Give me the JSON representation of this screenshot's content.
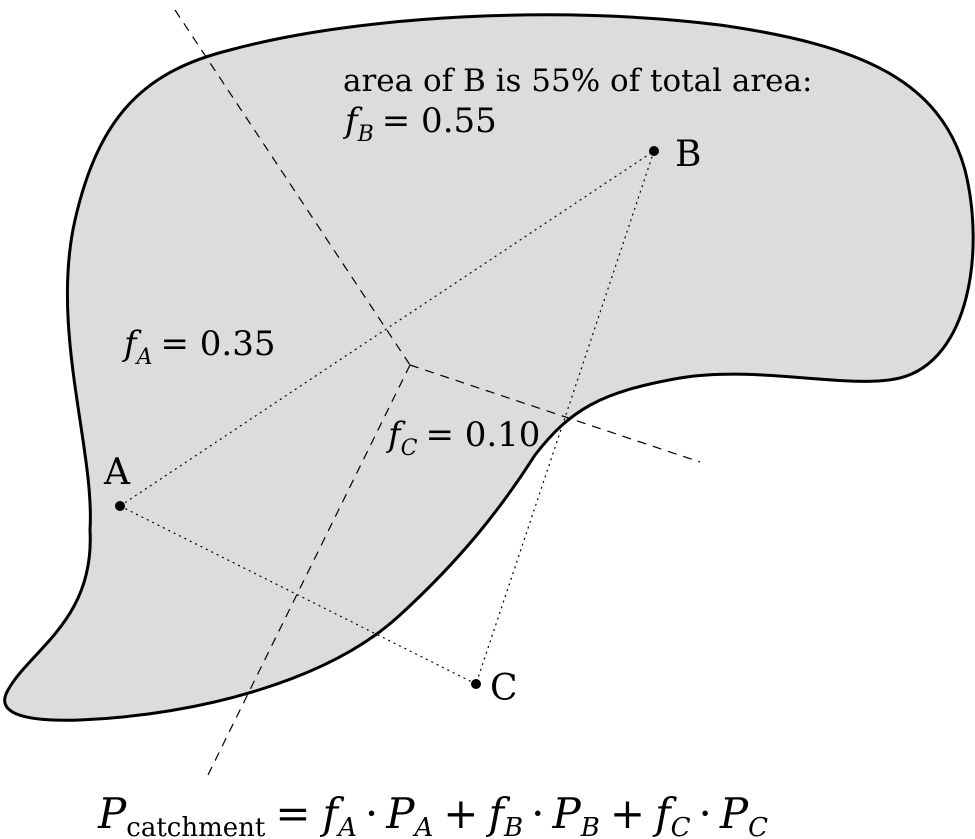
{
  "annotation": {
    "line1": "area of B is 55% of total area:",
    "f_symbol": "f",
    "sub_B": "B",
    "eq_B": "= 0.55"
  },
  "stations": {
    "A": {
      "label": "A",
      "f_symbol": "f",
      "f_sub": "A",
      "f_eq": "= 0.35"
    },
    "B": {
      "label": "B"
    },
    "C": {
      "label": "C",
      "f_symbol": "f",
      "f_sub": "C",
      "f_eq": "= 0.10"
    }
  },
  "formula": {
    "P": "P",
    "sub_catchment": "catchment",
    "eq": "=",
    "fA": "f",
    "sA": "A",
    "dot1": "·",
    "PA": "P",
    "sPA": "A",
    "plus1": "+",
    "fB": "f",
    "sB": "B",
    "dot2": "·",
    "PB": "P",
    "sPB": "B",
    "plus2": "+",
    "fC": "f",
    "sC": "C",
    "dot3": "·",
    "PC": "P",
    "sPC": "C"
  },
  "colors": {
    "catchment_fill": "#dcdcdc",
    "outline": "#000000"
  }
}
